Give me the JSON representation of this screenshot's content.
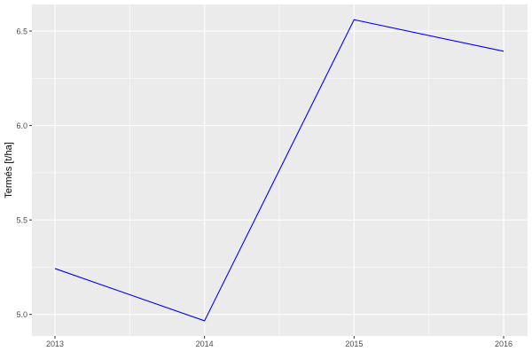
{
  "chart_data": {
    "type": "line",
    "title": "",
    "xlabel": "",
    "ylabel": "Termés [t/ha]",
    "x": [
      2013,
      2014,
      2015,
      2016
    ],
    "series": [
      {
        "values": [
          5.243,
          4.966,
          6.56,
          6.393
        ],
        "color": "#0000ff"
      }
    ],
    "xticks": [
      "2013",
      "2014",
      "2015",
      "2016"
    ],
    "yticks": [
      "5.0",
      "5.5",
      "6.0",
      "6.5"
    ],
    "xlim": [
      2012.846,
      2016.16
    ],
    "ylim": [
      4.886,
      6.641
    ],
    "grid": true,
    "panel_background": "#ebebeb",
    "grid_color": "#ffffff"
  }
}
